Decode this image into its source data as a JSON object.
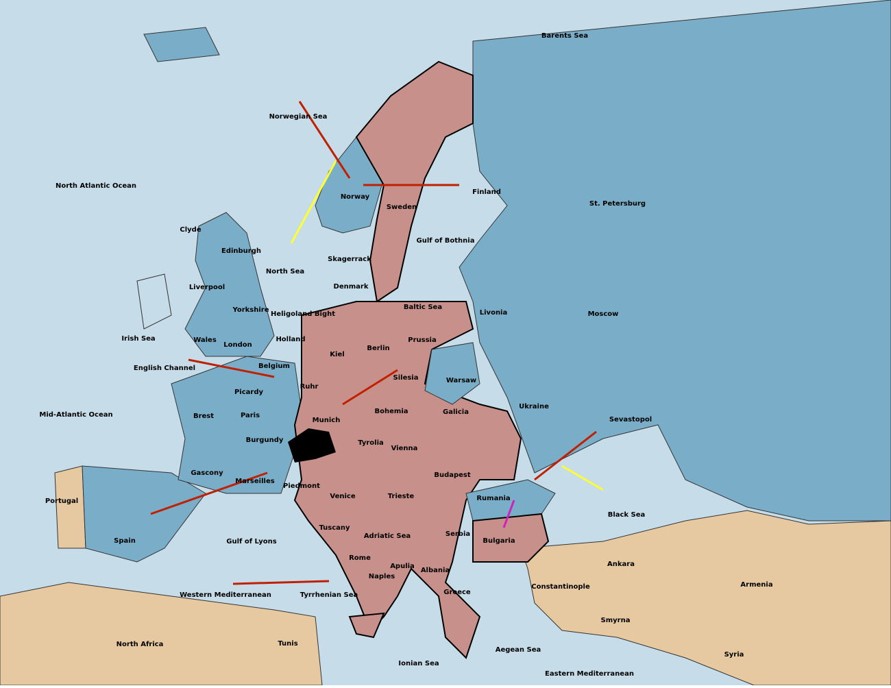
{
  "map": {
    "regions": [
      "Barents Sea",
      "Norwegian Sea",
      "North Atlantic Ocean",
      "Norway",
      "Sweden",
      "Finland",
      "St. Petersburg",
      "Clyde",
      "Edinburgh",
      "North Sea",
      "Skagerrack",
      "Gulf of Bothnia",
      "Liverpool",
      "Denmark",
      "Baltic Sea",
      "Yorkshire",
      "Heligoland Bight",
      "Livonia",
      "Moscow",
      "Irish Sea",
      "Wales",
      "London",
      "Holland",
      "Kiel",
      "Berlin",
      "Prussia",
      "English Channel",
      "Belgium",
      "Silesia",
      "Warsaw",
      "Ruhr",
      "Picardy",
      "Ukraine",
      "Mid-Atlantic Ocean",
      "Brest",
      "Paris",
      "Munich",
      "Bohemia",
      "Galicia",
      "Sevastopol",
      "Burgundy",
      "Tyrolia",
      "Vienna",
      "Gascony",
      "Budapest",
      "Marseilles",
      "Piedmont",
      "Venice",
      "Rumania",
      "Trieste",
      "Portugal",
      "Black Sea",
      "Spain",
      "Tuscany",
      "Adriatic Sea",
      "Serbia",
      "Bulgaria",
      "Gulf of Lyons",
      "Rome",
      "Apulia",
      "Ankara",
      "Naples",
      "Albania",
      "Armenia",
      "Constantinople",
      "Western Mediterranean",
      "Tyrrhenian Sea",
      "Greece",
      "Smyrna",
      "North Africa",
      "Tunis",
      "Aegean Sea",
      "Ionian Sea",
      "Syria",
      "Eastern Mediterranean"
    ]
  }
}
